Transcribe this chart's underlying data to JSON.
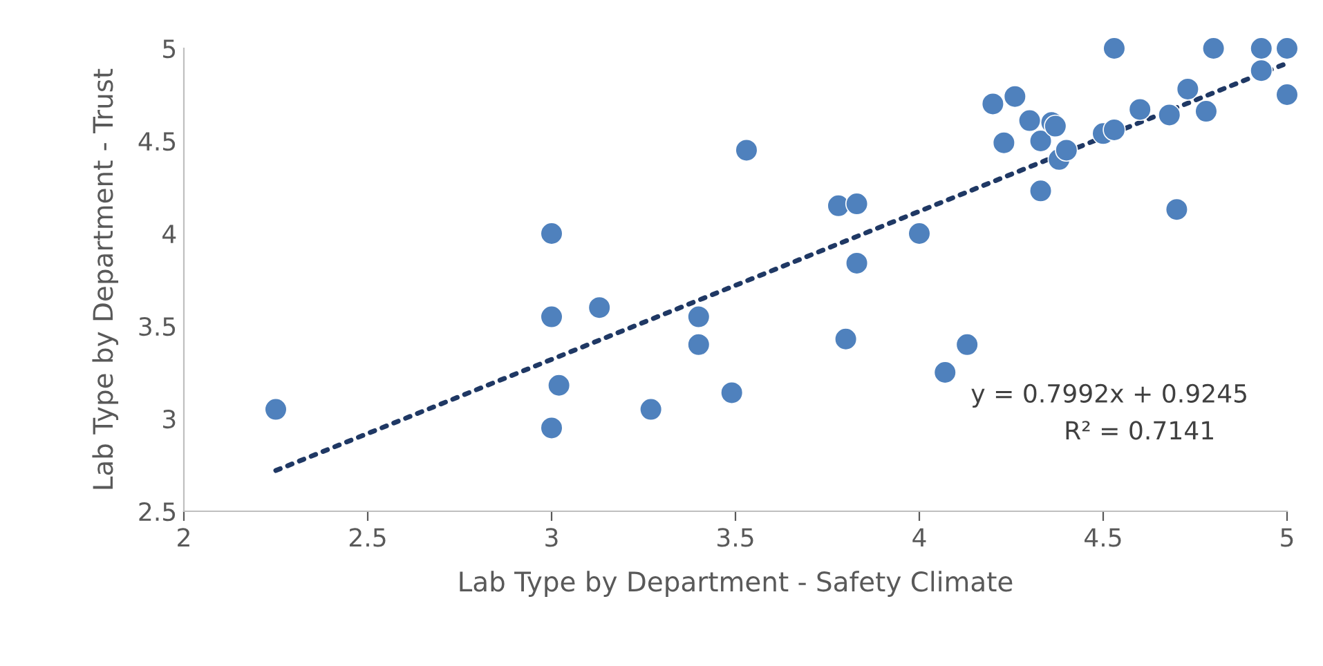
{
  "chart_data": {
    "type": "scatter",
    "xlabel": "Lab Type by Department - Safety Climate",
    "ylabel": "Lab Type by Department - Trust",
    "xlim": [
      2,
      5
    ],
    "ylim": [
      2.5,
      5
    ],
    "xticks": [
      2,
      2.5,
      3,
      3.5,
      4,
      4.5,
      5
    ],
    "yticks": [
      2.5,
      3,
      3.5,
      4,
      4.5,
      5
    ],
    "grid": false,
    "legend": false,
    "annotations": [
      "y = 0.7992x + 0.9245",
      "R² = 0.7141"
    ],
    "series": [
      {
        "marker": "circle",
        "color": "#4f81bd",
        "x": [
          2.25,
          3.0,
          3.0,
          3.02,
          3.0,
          3.13,
          3.27,
          3.4,
          3.4,
          3.49,
          3.53,
          3.78,
          3.83,
          3.83,
          3.8,
          4.0,
          4.07,
          4.13,
          4.2,
          4.23,
          4.26,
          4.3,
          4.33,
          4.33,
          4.36,
          4.37,
          4.38,
          4.4,
          4.5,
          4.53,
          4.53,
          4.6,
          4.68,
          4.7,
          4.73,
          4.78,
          4.8,
          4.93,
          4.93,
          5.0,
          5.0
        ],
        "values": [
          3.05,
          4.0,
          3.55,
          3.18,
          2.95,
          3.6,
          3.05,
          3.55,
          3.4,
          3.14,
          4.45,
          4.15,
          4.16,
          3.84,
          3.43,
          4.0,
          3.25,
          3.4,
          4.7,
          4.49,
          4.74,
          4.61,
          4.5,
          4.23,
          4.6,
          4.58,
          4.4,
          4.45,
          4.54,
          4.56,
          5.0,
          4.67,
          4.64,
          4.13,
          4.78,
          4.66,
          5.0,
          5.0,
          4.88,
          5.0,
          4.75
        ]
      },
      {
        "type": "line",
        "line_style": "dotted",
        "color": "#1f3864",
        "x": [
          2.25,
          5.0
        ],
        "values": [
          2.72,
          4.92
        ]
      }
    ]
  }
}
